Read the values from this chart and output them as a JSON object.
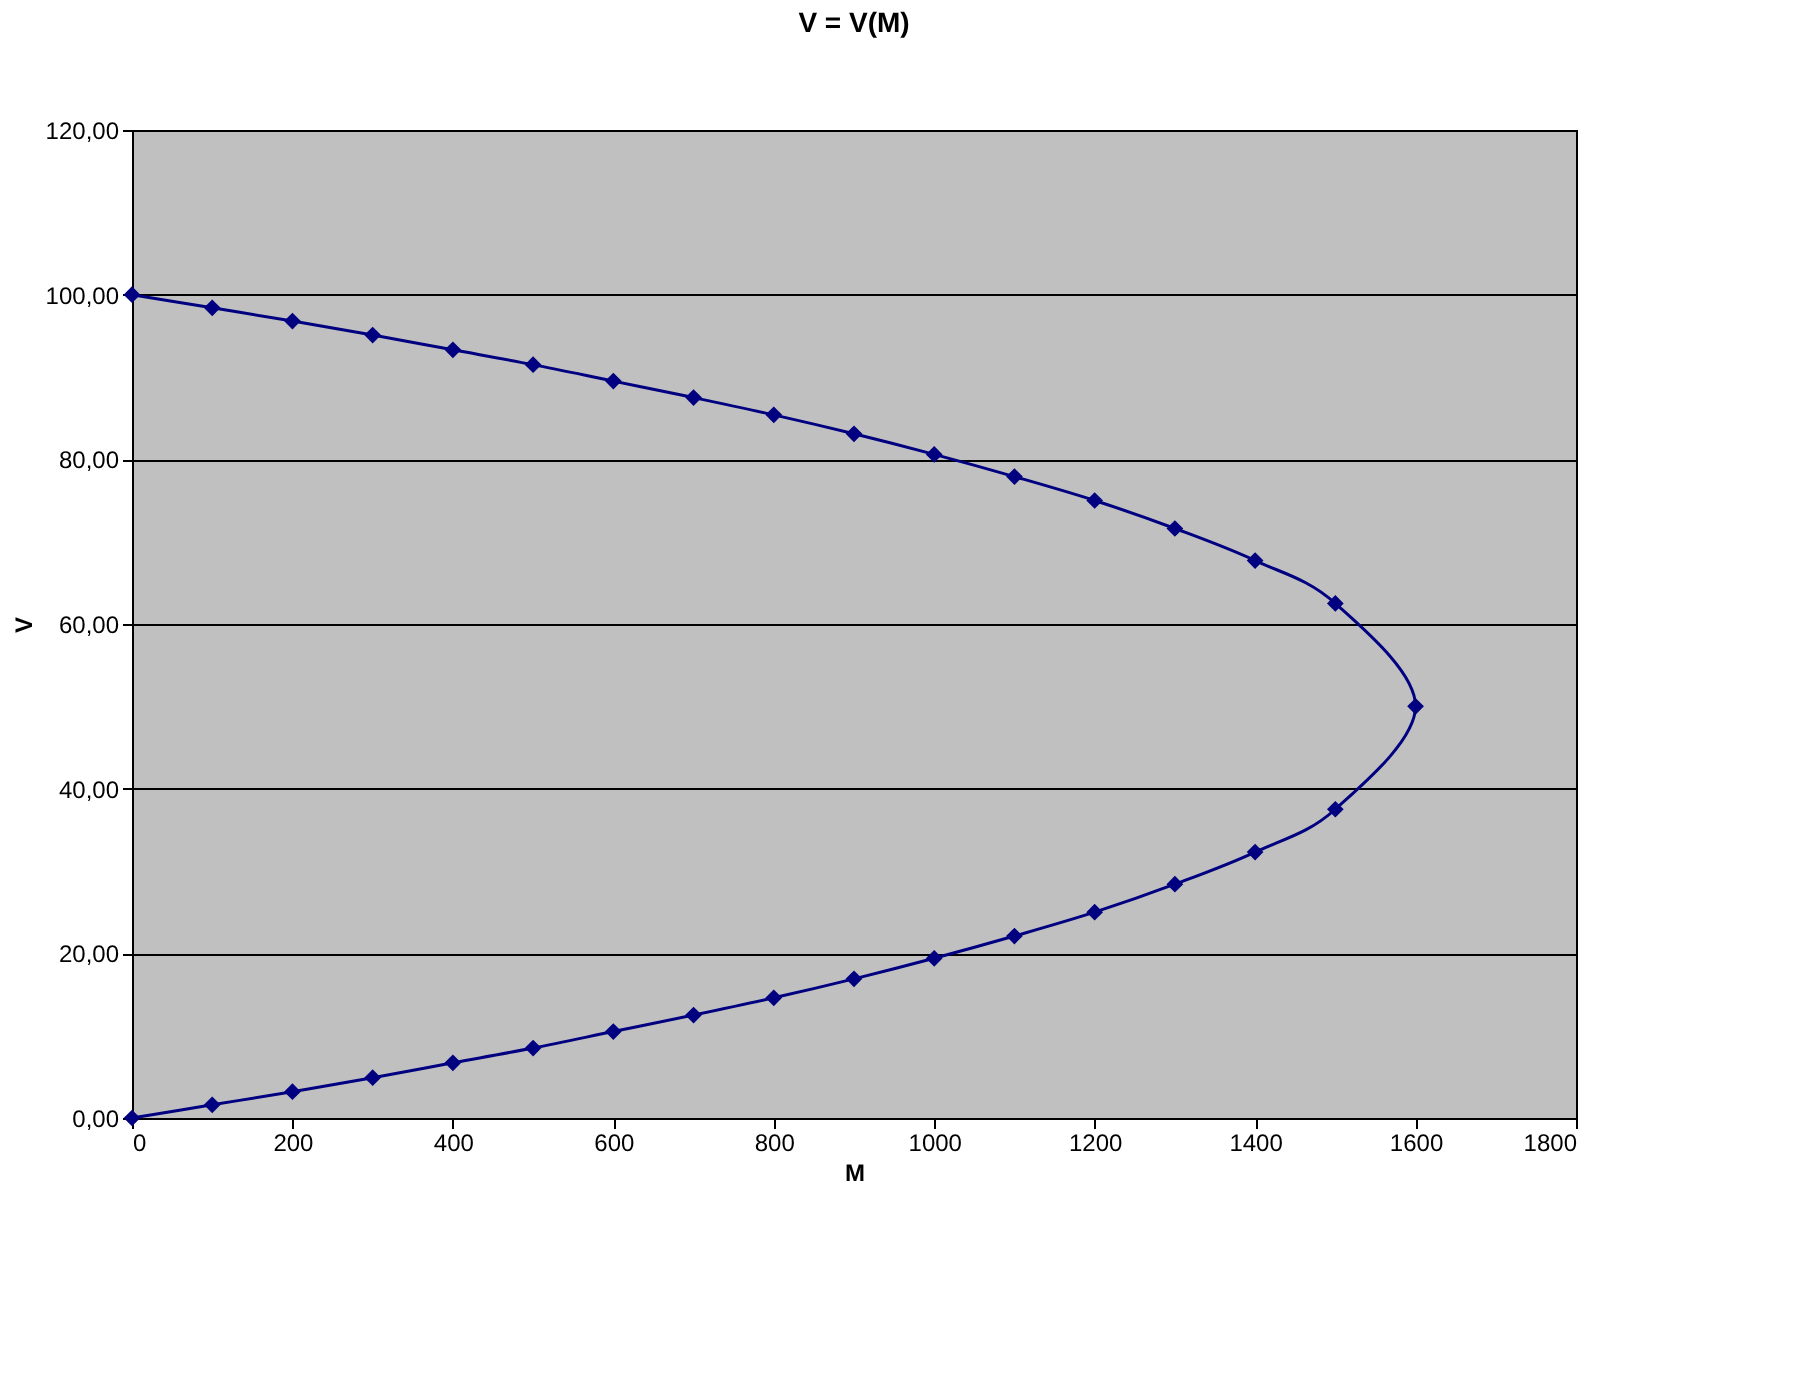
{
  "chart_data": {
    "type": "line",
    "title": "V = V(M)",
    "xlabel": "M",
    "ylabel": "V",
    "series": [
      {
        "color": "#000080",
        "x": [
          0,
          100,
          200,
          300,
          400,
          500,
          600,
          700,
          800,
          900,
          1000,
          1100,
          1200,
          1300,
          1400,
          1500,
          1600,
          1500,
          1400,
          1300,
          1200,
          1100,
          1000,
          900,
          800,
          700,
          600,
          500,
          400,
          300,
          200,
          100,
          0
        ],
        "values": [
          0,
          1.6,
          3.2,
          4.9,
          6.7,
          8.5,
          10.5,
          12.5,
          14.6,
          16.9,
          19.4,
          22.1,
          25,
          28.4,
          32.3,
          37.5,
          50,
          62.5,
          67.7,
          71.6,
          75,
          77.9,
          80.6,
          83.1,
          85.4,
          87.5,
          89.5,
          91.5,
          93.3,
          95.1,
          96.8,
          98.4,
          100
        ]
      }
    ],
    "xlim": [
      0,
      1800
    ],
    "xticks": [
      0,
      200,
      400,
      600,
      800,
      1000,
      1200,
      1400,
      1600,
      1800
    ],
    "ylim": [
      0,
      120
    ],
    "yticks": [
      {
        "value": 0,
        "label": "0,00"
      },
      {
        "value": 20,
        "label": "20,00"
      },
      {
        "value": 40,
        "label": "40,00"
      },
      {
        "value": 60,
        "label": "60,00"
      },
      {
        "value": 80,
        "label": "80,00"
      },
      {
        "value": 100,
        "label": "100,00"
      },
      {
        "value": 120,
        "label": "120,00"
      }
    ],
    "grid": "y",
    "legend": false,
    "marker": "diamond",
    "line_style": "solid"
  }
}
